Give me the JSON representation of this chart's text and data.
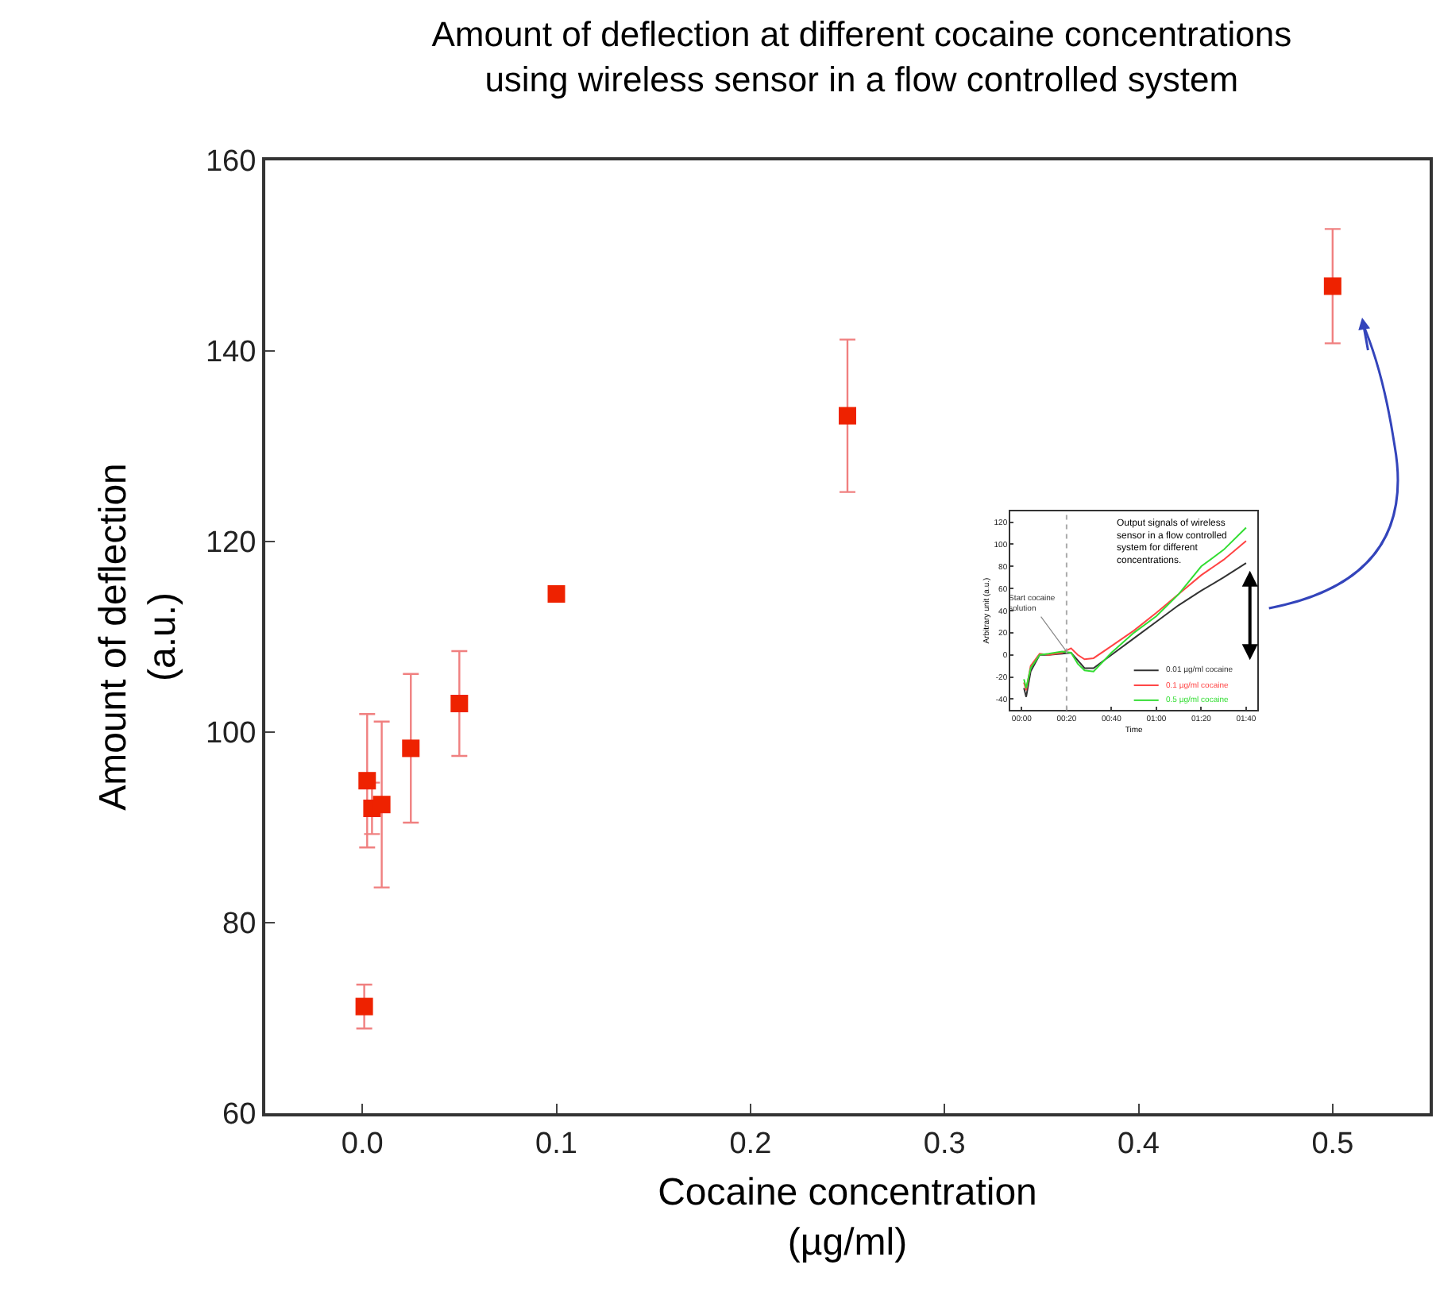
{
  "chart_data": [
    {
      "type": "scatter",
      "title": "Amount of deflection at different cocaine concentrations using wireless sensor in a flow controlled system",
      "xlabel": "Cocaine concentration (µg/ml)",
      "ylabel": "Amount of deflection (a.u.)",
      "x": [
        0.001,
        0.0025,
        0.005,
        0.01,
        0.025,
        0.05,
        0.1,
        0.25,
        0.5
      ],
      "series": [
        {
          "color": "#ee2200",
          "values": [
            71.2,
            94.9,
            92.0,
            92.4,
            98.3,
            103.0,
            114.5,
            133.2,
            146.8
          ],
          "errors": [
            2.3,
            7,
            2.7,
            8.7,
            7.8,
            5.5,
            null,
            8,
            6
          ]
        }
      ],
      "marker": "square",
      "xlim": [
        -0.05,
        0.55
      ],
      "ylim": [
        60,
        160
      ],
      "xticks": [
        {
          "value": 0,
          "label": "0.0"
        },
        0.1,
        0.2,
        0.3,
        0.4,
        0.5
      ],
      "yticks": [
        60,
        80,
        100,
        120,
        140,
        160
      ],
      "legend": false
    },
    {
      "type": "line",
      "title": "Output signals of wireless sensor in a flow controlled system for different concentrations.",
      "xlabel": "Time",
      "ylabel": "Arbitrary unit (a.u.)",
      "x": [
        1,
        2,
        4,
        8,
        12,
        18,
        22,
        25,
        28,
        32,
        40,
        50,
        60,
        70,
        80,
        90,
        100
      ],
      "series": [
        {
          "name": "0.01 µg/ml cocaine",
          "color": "#333333",
          "values": [
            -30,
            -38,
            -15,
            0,
            0,
            1,
            2,
            -5,
            -12,
            -12,
            0,
            15,
            30,
            45,
            58,
            70,
            83
          ]
        },
        {
          "name": "0.1 µg/ml cocaine",
          "color": "#ff4444",
          "values": [
            -25,
            -32,
            -10,
            1,
            0,
            2,
            6,
            0,
            -4,
            -3,
            8,
            22,
            38,
            55,
            72,
            86,
            103
          ]
        },
        {
          "name": "0.5 µg/ml cocaine",
          "color": "#33dd33",
          "values": [
            -22,
            -30,
            -12,
            0,
            1,
            3,
            2,
            -8,
            -14,
            -15,
            2,
            20,
            35,
            55,
            80,
            95,
            115
          ]
        }
      ],
      "xlim": [
        -5,
        105
      ],
      "ylim": [
        -50,
        130
      ],
      "xticks": [
        {
          "value": 0,
          "label": "00:00"
        },
        {
          "value": 20,
          "label": "00:20"
        },
        {
          "value": 40,
          "label": "00:40"
        },
        {
          "value": 60,
          "label": "01:00"
        },
        {
          "value": 80,
          "label": "01:20"
        },
        {
          "value": 100,
          "label": "01:40"
        }
      ],
      "yticks": [
        -40,
        -20,
        0,
        20,
        40,
        60,
        80,
        100,
        120
      ],
      "ref_lines": [
        {
          "axis": "x",
          "value": 20,
          "line_style": "dotted",
          "color": "#aaaaaa"
        }
      ],
      "annotations": [
        {
          "text": "Start cocaine solution",
          "x": 20,
          "y": 3
        }
      ],
      "legend": "bottom right",
      "marker": "none",
      "line_style": "solid"
    }
  ]
}
